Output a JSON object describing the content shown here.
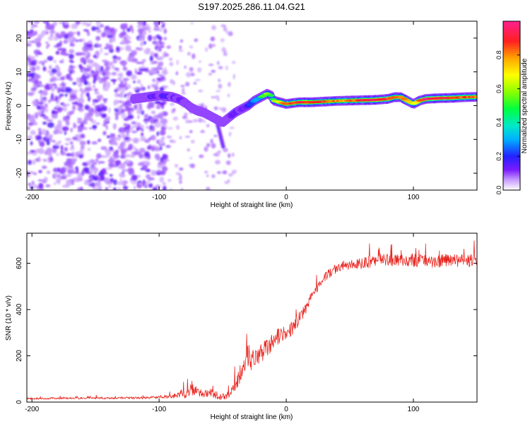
{
  "title": "S197.2025.286.11.04.G21",
  "chart_data": [
    {
      "type": "heatmap",
      "name": "spectrogram",
      "xlabel": "Height of straight line (km)",
      "ylabel": "Frequency (Hz)",
      "xlim": [
        -204,
        150
      ],
      "ylim": [
        -25,
        25
      ],
      "xticks": [
        -200,
        -100,
        0,
        100
      ],
      "xtick_labels": [
        "-200",
        "-100",
        "0",
        "100"
      ],
      "yticks": [
        -20,
        -10,
        0,
        10,
        20
      ],
      "ytick_labels": [
        "-20",
        "-10",
        "0",
        "10",
        "20"
      ],
      "colorbar": {
        "label": "Normalized spectral amplitude",
        "range": [
          0,
          1
        ],
        "ticks": [
          0.0,
          0.2,
          0.4,
          0.6,
          0.8
        ],
        "tick_labels": [
          "0.0",
          "0.2",
          "0.4",
          "0.6",
          "0.8"
        ],
        "colormap": "rainbow"
      },
      "noise_region_km": [
        -204,
        -95
      ],
      "ridge": {
        "x": [
          -120,
          -110,
          -100,
          -90,
          -85,
          -80,
          -75,
          -70,
          -65,
          -60,
          -55,
          -50,
          -45,
          -40,
          -35,
          -30,
          -25,
          -20,
          -15,
          -12,
          -10,
          -5,
          0,
          10,
          20,
          30,
          40,
          50,
          60,
          70,
          80,
          85,
          90,
          95,
          100,
          105,
          110,
          120,
          130,
          140,
          150
        ],
        "freq": [
          2.0,
          2.5,
          3.0,
          2.6,
          2.0,
          1.0,
          -0.5,
          -1.5,
          -2.0,
          -3.0,
          -4.0,
          -5.0,
          -3.5,
          -2.0,
          -1.0,
          0.0,
          1.5,
          2.5,
          3.5,
          3.0,
          1.5,
          1.0,
          0.5,
          1.0,
          1.0,
          1.2,
          1.4,
          1.5,
          1.6,
          1.7,
          2.0,
          2.5,
          2.5,
          1.5,
          0.5,
          1.5,
          2.0,
          2.2,
          2.3,
          2.5,
          2.6
        ],
        "amplitude": [
          0.25,
          0.3,
          0.35,
          0.35,
          0.3,
          0.3,
          0.25,
          0.3,
          0.3,
          0.25,
          0.25,
          0.25,
          0.3,
          0.3,
          0.35,
          0.4,
          0.45,
          0.5,
          0.6,
          0.5,
          0.55,
          0.75,
          0.85,
          0.9,
          0.9,
          0.85,
          0.8,
          0.8,
          0.9,
          0.95,
          0.9,
          0.8,
          0.85,
          0.8,
          0.6,
          0.8,
          0.95,
          0.95,
          0.9,
          0.85,
          0.8
        ]
      }
    },
    {
      "type": "line",
      "name": "snr",
      "xlabel": "Height of straight line (km)",
      "ylabel": "SNR (10 * v/v)",
      "xlim": [
        -204,
        150
      ],
      "ylim": [
        0,
        730
      ],
      "xticks": [
        -200,
        -100,
        0,
        100
      ],
      "xtick_labels": [
        "-200",
        "-100",
        "0",
        "100"
      ],
      "yticks": [
        0,
        200,
        400,
        600
      ],
      "ytick_labels": [
        "0",
        "200",
        "400",
        "600"
      ],
      "color": "#e8251f",
      "series": [
        {
          "name": "SNR",
          "x": [
            -204,
            -180,
            -160,
            -140,
            -120,
            -100,
            -90,
            -80,
            -75,
            -70,
            -65,
            -60,
            -55,
            -50,
            -45,
            -40,
            -35,
            -30,
            -25,
            -20,
            -15,
            -10,
            -5,
            0,
            5,
            10,
            15,
            20,
            25,
            30,
            35,
            40,
            45,
            50,
            60,
            70,
            80,
            90,
            100,
            110,
            120,
            130,
            140,
            150
          ],
          "y": [
            15,
            16,
            17,
            17,
            18,
            20,
            25,
            40,
            55,
            45,
            35,
            40,
            30,
            25,
            30,
            80,
            140,
            170,
            190,
            210,
            240,
            270,
            290,
            300,
            320,
            360,
            400,
            460,
            500,
            540,
            560,
            580,
            590,
            595,
            600,
            610,
            615,
            610,
            612,
            608,
            610,
            612,
            610,
            612
          ],
          "spread": [
            8,
            8,
            8,
            8,
            10,
            12,
            15,
            50,
            50,
            40,
            35,
            35,
            35,
            30,
            30,
            60,
            90,
            90,
            90,
            90,
            90,
            80,
            70,
            60,
            60,
            55,
            50,
            45,
            40,
            40,
            40,
            40,
            40,
            45,
            50,
            55,
            55,
            55,
            55,
            55,
            55,
            55,
            55,
            55
          ]
        }
      ]
    }
  ]
}
